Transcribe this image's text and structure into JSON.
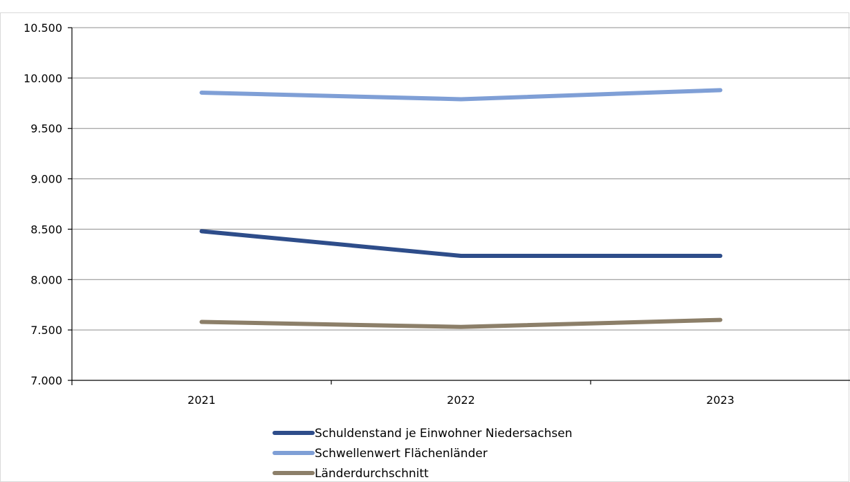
{
  "chart_data": {
    "type": "line",
    "categories": [
      "2021",
      "2022",
      "2023"
    ],
    "ylim": [
      7000,
      10500
    ],
    "yticks": [
      7000,
      7500,
      8000,
      8500,
      9000,
      9500,
      10000,
      10500
    ],
    "ytick_labels": [
      "7.000",
      "7.500",
      "8.000",
      "8.500",
      "9.000",
      "9.500",
      "10.000",
      "10.500"
    ],
    "grid": true,
    "legend_position": "bottom",
    "series": [
      {
        "name": "Schuldenstand je Einwohner Niedersachsen",
        "color": "#2e4d8a",
        "values": [
          8480,
          8235,
          8235
        ]
      },
      {
        "name": "Schwellenwert Flächenländer",
        "color": "#7f9fd6",
        "values": [
          9855,
          9790,
          9880
        ]
      },
      {
        "name": "Länderdurchschnitt",
        "color": "#8c7f69",
        "values": [
          7580,
          7530,
          7600
        ]
      }
    ]
  }
}
